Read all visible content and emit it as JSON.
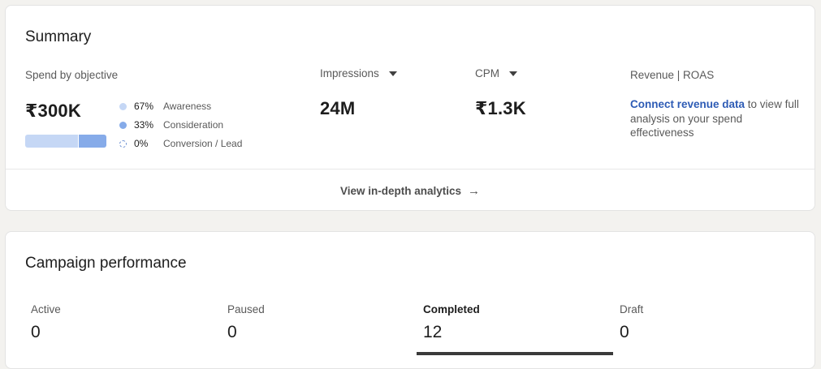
{
  "summary": {
    "title": "Summary",
    "spend": {
      "label": "Spend by objective",
      "value": "₹300K",
      "breakdown": [
        {
          "pct": "67%",
          "name": "Awareness",
          "color": "#c5d7f5"
        },
        {
          "pct": "33%",
          "name": "Consideration",
          "color": "#86abe9"
        },
        {
          "pct": "0%",
          "name": "Conversion / Lead",
          "color": "#6b8fd1"
        }
      ]
    },
    "impressions": {
      "label": "Impressions",
      "value": "24M"
    },
    "cpm": {
      "label": "CPM",
      "value": "₹1.3K"
    },
    "revenue": {
      "label": "Revenue | ROAS",
      "link_text": "Connect revenue data",
      "rest_text": " to view full analysis on your spend effectiveness"
    },
    "analytics_link": "View in-depth analytics",
    "arrow_icon": "arrow-right-icon"
  },
  "campaign": {
    "title": "Campaign performance",
    "tabs": [
      {
        "label": "Active",
        "value": "0"
      },
      {
        "label": "Paused",
        "value": "0"
      },
      {
        "label": "Completed",
        "value": "12",
        "selected": true
      },
      {
        "label": "Draft",
        "value": "0"
      }
    ]
  },
  "colors": {
    "link": "#2d5bb5",
    "selected_underline": "#3a3a3a"
  }
}
